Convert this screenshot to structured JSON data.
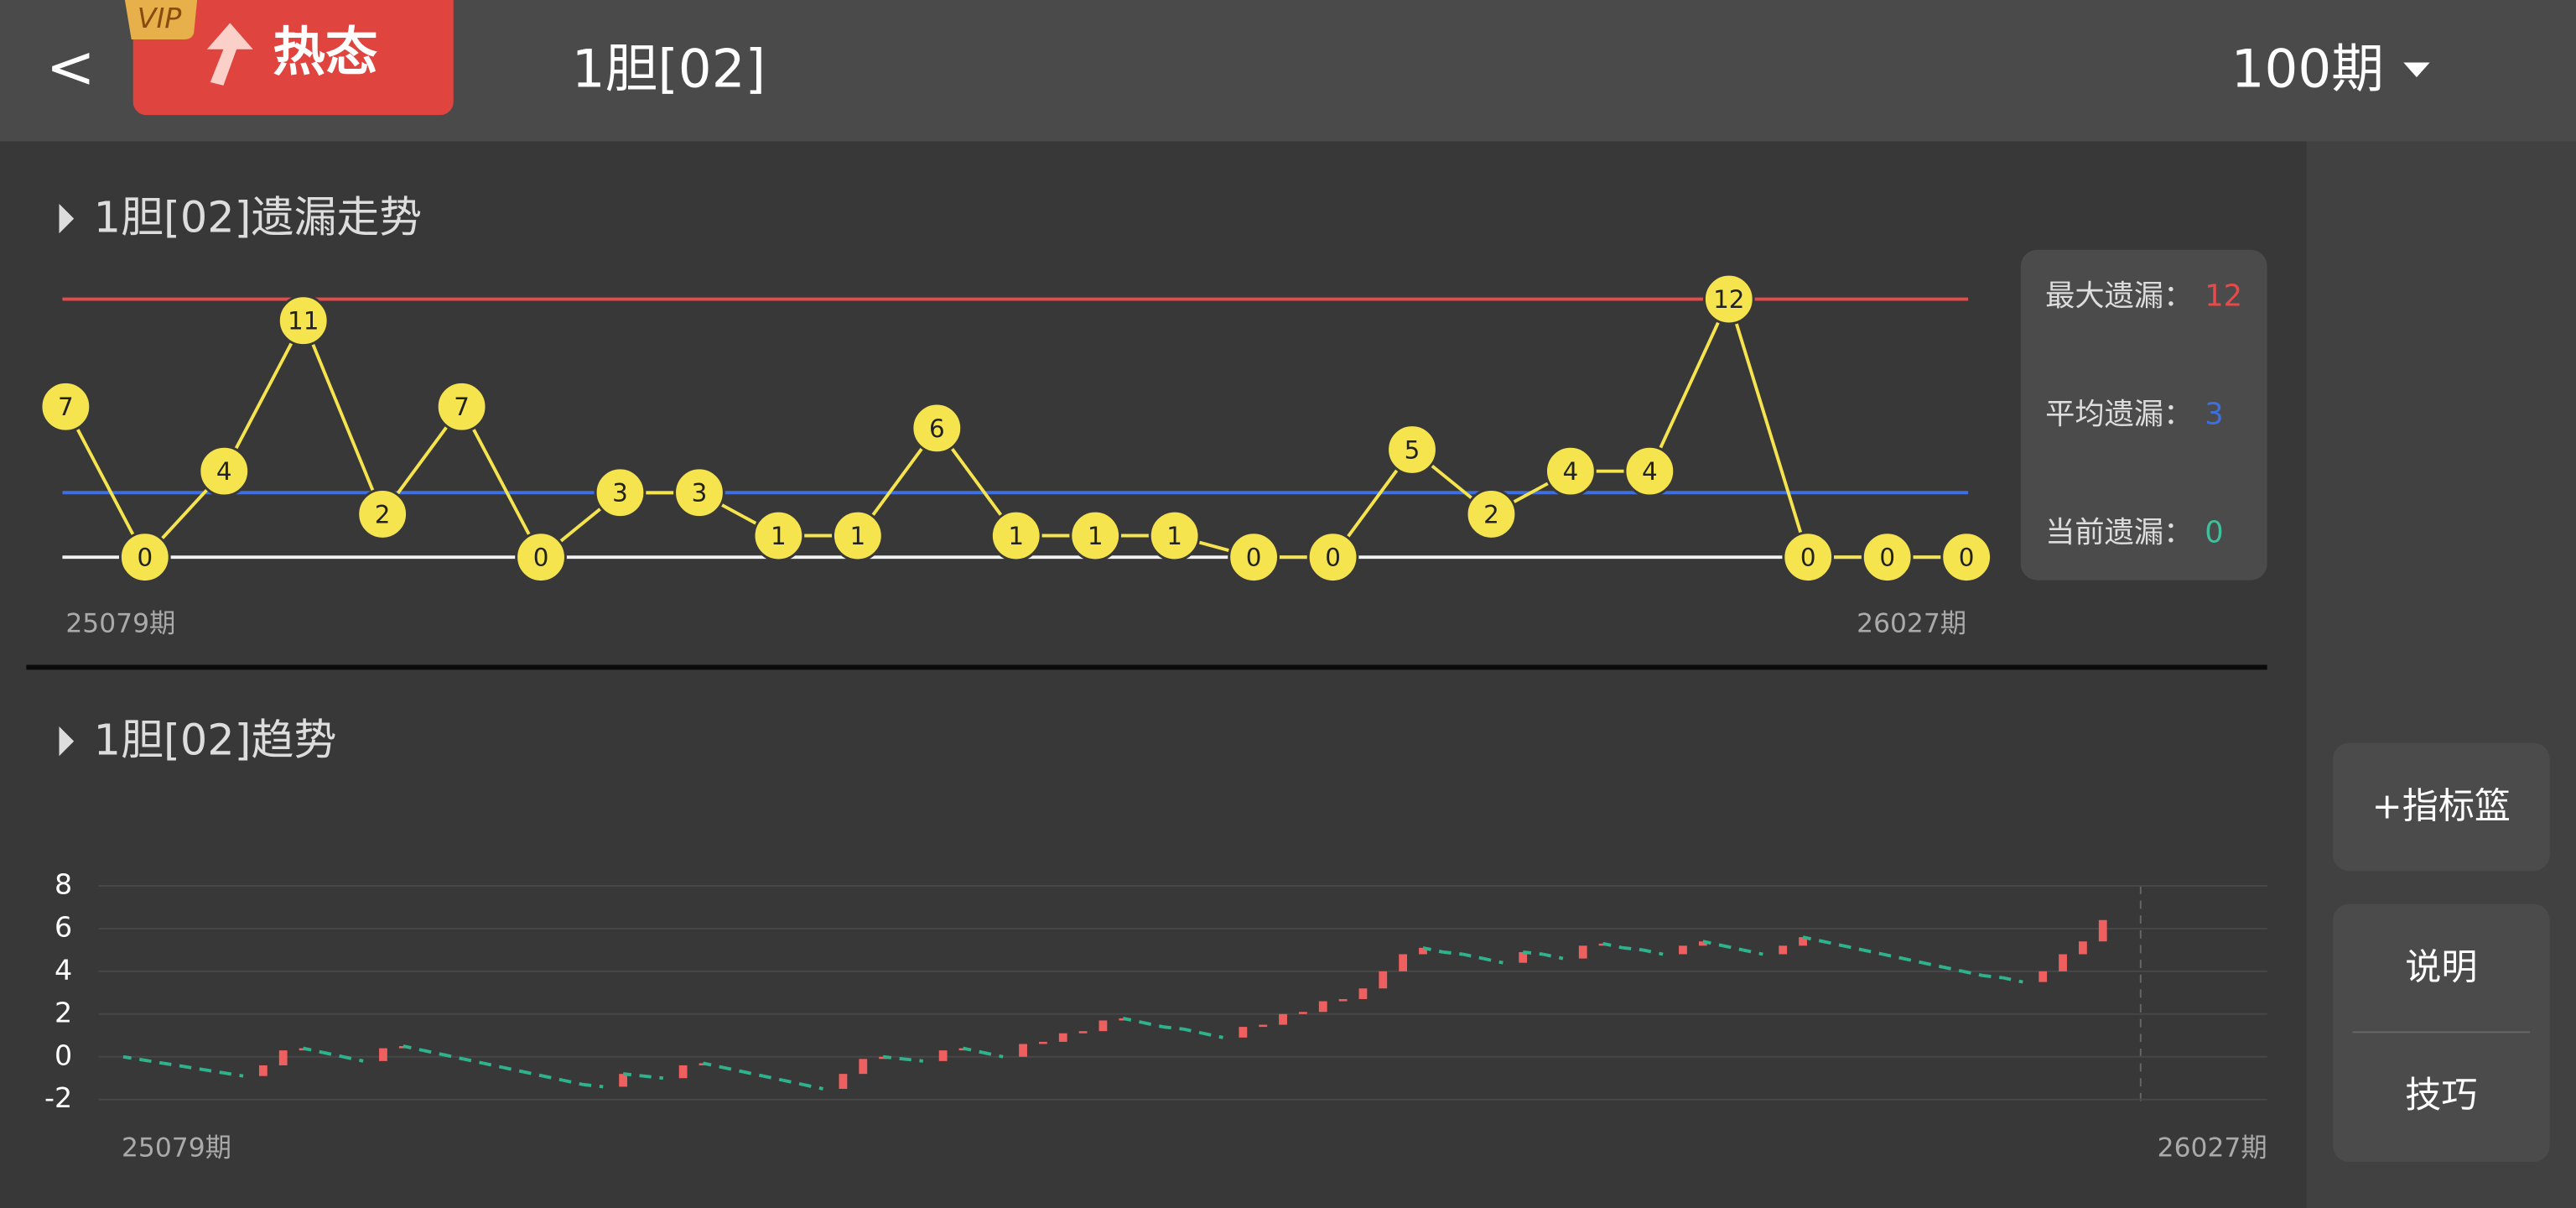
{
  "header": {
    "back": "<",
    "badge_tag": "VIP",
    "badge_text": "热态",
    "title": "1胆[02]",
    "period_select": "100期"
  },
  "sidebar": {
    "buttons": [
      "+指标篮",
      "说明",
      "技巧"
    ]
  },
  "chart_data": [
    {
      "type": "line",
      "title": "1胆[02]遗漏走势",
      "values": [
        7,
        0,
        4,
        11,
        2,
        7,
        0,
        3,
        3,
        1,
        1,
        6,
        1,
        1,
        1,
        0,
        0,
        5,
        2,
        4,
        4,
        12,
        0,
        0,
        0
      ],
      "x_labels": [
        "25079期",
        "26027期"
      ],
      "ylim": [
        0,
        12
      ],
      "color": "#f5e44e",
      "stats": [
        {
          "label": "最大遗漏：",
          "value": 12,
          "color": "#e84a4a"
        },
        {
          "label": "平均遗漏：",
          "value": 3,
          "color": "#3d6fe0"
        },
        {
          "label": "当前遗漏：",
          "value": 0,
          "color": "#3fbf9a"
        }
      ]
    },
    {
      "type": "trend",
      "title": "1胆[02]趋势",
      "values": [
        0,
        -0.15,
        -0.3,
        -0.45,
        -0.6,
        -0.75,
        -0.9,
        -0.4,
        0.3,
        0.4,
        0.2,
        0.0,
        -0.2,
        0.4,
        0.5,
        0.3,
        0.1,
        -0.1,
        -0.3,
        -0.5,
        -0.7,
        -0.9,
        -1.1,
        -1.3,
        -1.4,
        -0.8,
        -0.9,
        -1.0,
        -0.4,
        -0.3,
        -0.5,
        -0.7,
        -0.9,
        -1.1,
        -1.3,
        -1.5,
        -0.8,
        -0.1,
        0.0,
        -0.1,
        -0.2,
        0.3,
        0.4,
        0.2,
        0.0,
        0.6,
        0.7,
        1.1,
        1.2,
        1.7,
        1.8,
        1.6,
        1.4,
        1.3,
        1.1,
        0.9,
        1.4,
        1.5,
        2.0,
        2.1,
        2.6,
        2.7,
        3.2,
        4.0,
        4.8,
        5.1,
        4.9,
        4.8,
        4.6,
        4.4,
        4.9,
        4.8,
        4.6,
        5.2,
        5.3,
        5.1,
        5.0,
        4.8,
        5.2,
        5.4,
        5.2,
        5.0,
        4.8,
        5.2,
        5.6,
        5.4,
        5.2,
        5.0,
        4.8,
        4.6,
        4.4,
        4.2,
        4.0,
        3.8,
        3.7,
        3.5,
        4.0,
        4.8,
        5.4,
        6.4
      ],
      "x_labels": [
        "25079期",
        "26027期"
      ],
      "ylim": [
        -2,
        8
      ],
      "yticks": [
        -2,
        0,
        2,
        4,
        6,
        8
      ],
      "grid": true,
      "up_color": "#ee5f5f",
      "down_color": "#2fb38c"
    }
  ]
}
